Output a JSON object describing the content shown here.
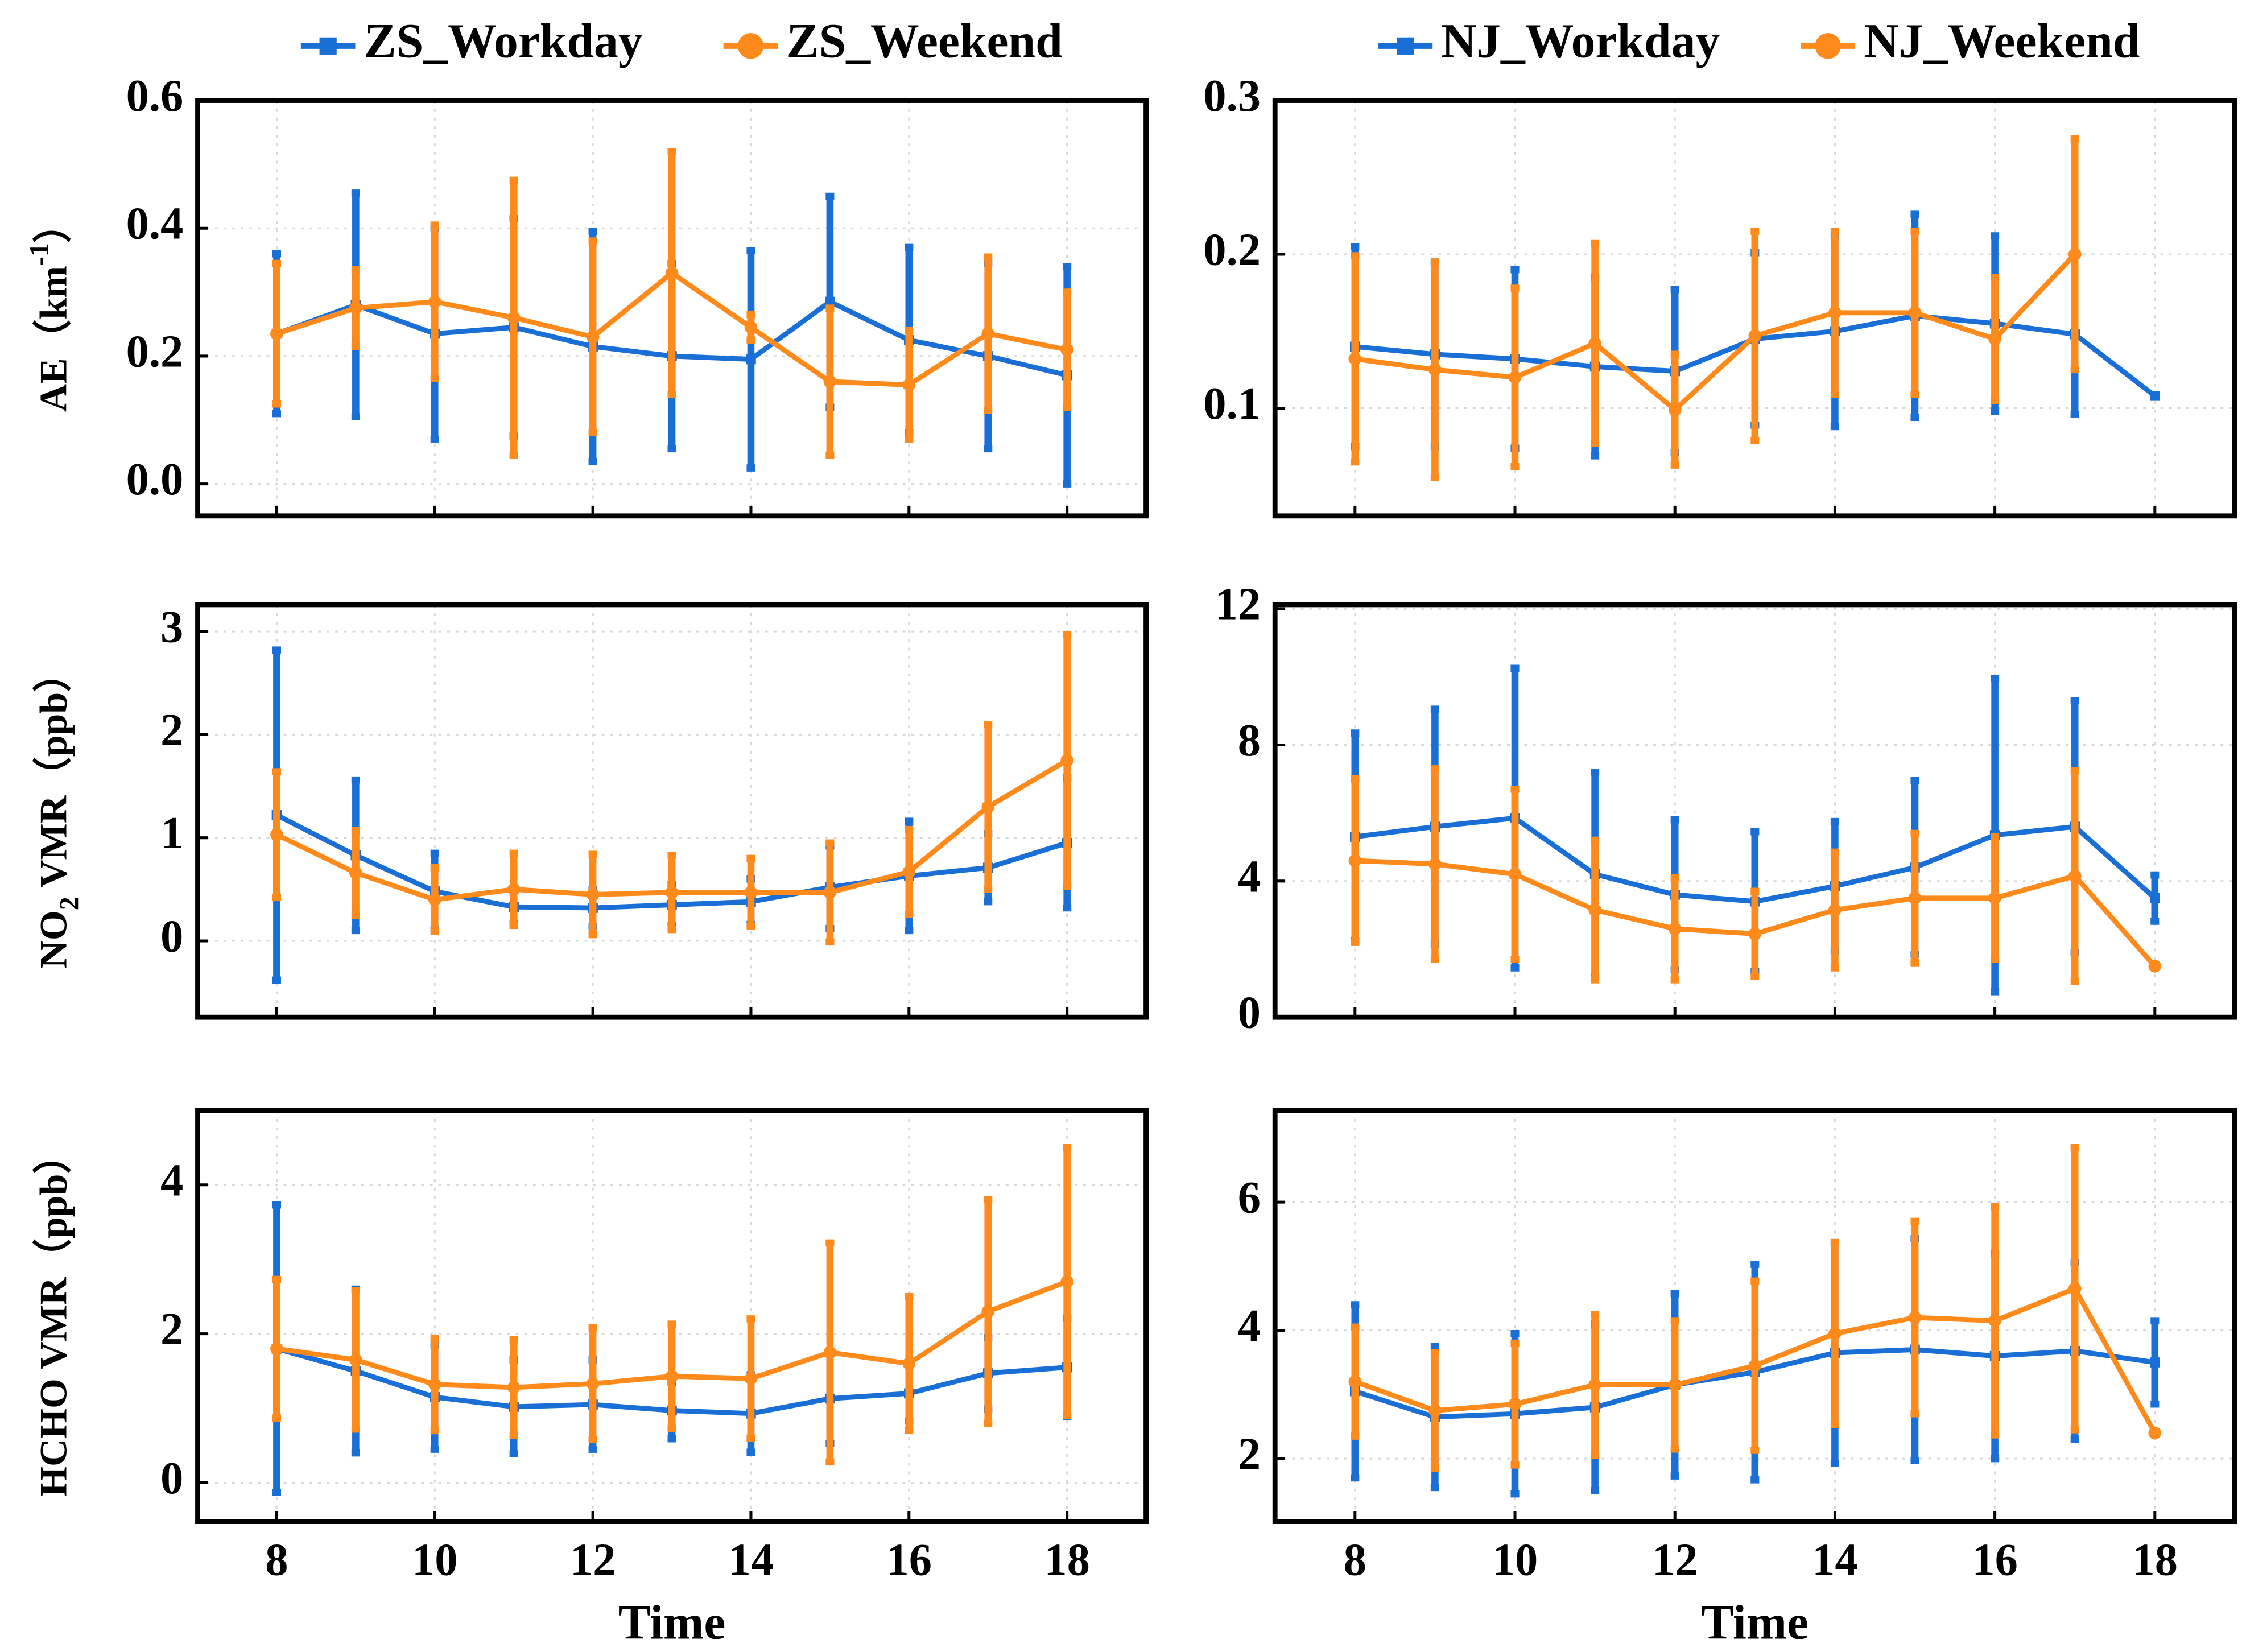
{
  "chart_data": [
    {
      "type": "line",
      "ylabel": [
        "AE（km",
        "-1",
        "）"
      ],
      "ylabel_script": "super",
      "legend": true,
      "show_xtick_labels": false,
      "x": [
        8,
        9,
        10,
        11,
        12,
        13,
        14,
        15,
        16,
        17,
        18
      ],
      "xlim": [
        7,
        19
      ],
      "xticks": [
        8,
        10,
        12,
        14,
        16,
        18
      ],
      "ylim": [
        -0.05,
        0.6
      ],
      "yticks": [
        {
          "value": 0,
          "label": "0.0"
        },
        0.2,
        0.4,
        0.6
      ],
      "grid": true,
      "series": [
        {
          "name": "ZS_Workday",
          "color": "#1a6fd6",
          "marker": "square",
          "values": [
            0.235,
            0.28,
            0.235,
            0.245,
            0.215,
            0.2,
            0.195,
            0.285,
            0.225,
            0.2,
            0.17
          ],
          "errors": [
            0.125,
            0.175,
            0.165,
            0.17,
            0.18,
            0.145,
            0.17,
            0.165,
            0.145,
            0.145,
            0.17
          ]
        },
        {
          "name": "ZS_Weekend",
          "color": "#ff8a1c",
          "marker": "circle",
          "values": [
            0.235,
            0.275,
            0.285,
            0.26,
            0.23,
            0.33,
            0.245,
            0.16,
            0.155,
            0.235,
            0.21
          ],
          "errors": [
            0.11,
            0.06,
            0.12,
            0.215,
            0.15,
            0.19,
            0.02,
            0.115,
            0.085,
            0.12,
            0.09
          ]
        }
      ]
    },
    {
      "type": "line",
      "legend": true,
      "show_xtick_labels": false,
      "x": [
        8,
        9,
        10,
        11,
        12,
        13,
        14,
        15,
        16,
        17,
        18
      ],
      "xlim": [
        7,
        19
      ],
      "xticks": [
        8,
        10,
        12,
        14,
        16,
        18
      ],
      "ylim": [
        0.03,
        0.3
      ],
      "yticks": [
        0.1,
        0.2,
        0.3
      ],
      "grid": true,
      "series": [
        {
          "name": "NJ_Workday",
          "color": "#1a6fd6",
          "marker": "square",
          "values": [
            0.14,
            0.135,
            0.132,
            0.127,
            0.124,
            0.145,
            0.15,
            0.16,
            0.155,
            0.148,
            0.108
          ],
          "errors": [
            0.065,
            0.06,
            0.058,
            0.058,
            0.053,
            0.056,
            0.062,
            0.066,
            0.057,
            0.052,
            null
          ]
        },
        {
          "name": "NJ_Weekend",
          "color": "#ff8a1c",
          "marker": "circle",
          "values": [
            0.132,
            0.125,
            0.12,
            0.142,
            0.099,
            0.147,
            0.162,
            0.162,
            0.145,
            0.2,
            null
          ],
          "errors": [
            0.067,
            0.07,
            0.058,
            0.065,
            0.036,
            0.068,
            0.053,
            0.053,
            0.04,
            0.075,
            null
          ]
        }
      ]
    },
    {
      "type": "line",
      "ylabel": [
        "NO",
        "2",
        " VMR（ppb）"
      ],
      "ylabel_script": "sub",
      "legend": false,
      "show_xtick_labels": false,
      "x": [
        8,
        9,
        10,
        11,
        12,
        13,
        14,
        15,
        16,
        17,
        18
      ],
      "xlim": [
        7,
        19
      ],
      "xticks": [
        8,
        10,
        12,
        14,
        16,
        18
      ],
      "ylim": [
        -0.74,
        3.26
      ],
      "yticks": [
        0,
        1,
        2,
        3
      ],
      "grid": true,
      "series": [
        {
          "color": "#1a6fd6",
          "marker": "square",
          "values": [
            1.22,
            0.83,
            0.48,
            0.33,
            0.32,
            0.35,
            0.38,
            0.52,
            0.63,
            0.71,
            0.95
          ],
          "errors": [
            1.6,
            0.73,
            0.37,
            0.16,
            0.18,
            0.2,
            0.22,
            0.4,
            0.53,
            0.33,
            0.63
          ]
        },
        {
          "color": "#ff8a1c",
          "marker": "circle",
          "values": [
            1.03,
            0.66,
            0.4,
            0.5,
            0.45,
            0.47,
            0.47,
            0.47,
            0.67,
            1.3,
            1.75
          ],
          "errors": [
            0.61,
            0.41,
            0.31,
            0.35,
            0.39,
            0.36,
            0.33,
            0.48,
            0.41,
            0.8,
            1.22
          ]
        }
      ]
    },
    {
      "type": "line",
      "legend": false,
      "show_xtick_labels": false,
      "x": [
        8,
        9,
        10,
        11,
        12,
        13,
        14,
        15,
        16,
        17,
        18
      ],
      "xlim": [
        7,
        19
      ],
      "xticks": [
        8,
        10,
        12,
        14,
        16,
        18
      ],
      "ylim": [
        0,
        12.12
      ],
      "yticks": [
        0,
        4,
        8,
        12
      ],
      "grid": true,
      "series": [
        {
          "color": "#1a6fd6",
          "marker": "square",
          "values": [
            5.3,
            5.6,
            5.85,
            4.2,
            3.6,
            3.4,
            3.85,
            4.4,
            5.35,
            5.6,
            3.5
          ],
          "errors": [
            3.05,
            3.45,
            4.4,
            3.0,
            2.2,
            2.05,
            1.9,
            2.55,
            4.6,
            3.7,
            0.68
          ]
        },
        {
          "color": "#ff8a1c",
          "marker": "circle",
          "values": [
            4.6,
            4.5,
            4.2,
            3.15,
            2.6,
            2.45,
            3.15,
            3.5,
            3.5,
            4.15,
            1.5
          ],
          "errors": [
            2.4,
            2.8,
            2.5,
            2.05,
            1.5,
            1.25,
            1.7,
            1.9,
            1.8,
            3.1,
            null
          ]
        }
      ]
    },
    {
      "type": "line",
      "ylabel": [
        "HCHO VMR（ppb）"
      ],
      "legend": false,
      "show_xtick_labels": true,
      "xlabel": "Time",
      "x": [
        8,
        9,
        10,
        11,
        12,
        13,
        14,
        15,
        16,
        17,
        18
      ],
      "xlim": [
        7,
        19
      ],
      "xticks": [
        8,
        10,
        12,
        14,
        16,
        18
      ],
      "ylim": [
        -0.52,
        5.0
      ],
      "yticks": [
        0,
        2,
        4
      ],
      "grid": true,
      "series": [
        {
          "color": "#1a6fd6",
          "marker": "square",
          "values": [
            1.8,
            1.5,
            1.15,
            1.02,
            1.05,
            0.97,
            0.93,
            1.13,
            1.2,
            1.47,
            1.55
          ],
          "errors": [
            1.93,
            1.1,
            0.7,
            0.63,
            0.6,
            0.38,
            0.52,
            0.6,
            0.37,
            0.48,
            0.66
          ]
        },
        {
          "color": "#ff8a1c",
          "marker": "circle",
          "values": [
            1.8,
            1.65,
            1.32,
            1.28,
            1.33,
            1.43,
            1.4,
            1.75,
            1.6,
            2.3,
            2.7
          ],
          "errors": [
            0.93,
            0.93,
            0.62,
            0.64,
            0.75,
            0.7,
            0.8,
            1.47,
            0.9,
            1.5,
            1.8
          ]
        }
      ]
    },
    {
      "type": "line",
      "legend": false,
      "show_xtick_labels": true,
      "xlabel": "Time",
      "x": [
        8,
        9,
        10,
        11,
        12,
        13,
        14,
        15,
        16,
        17,
        18
      ],
      "xlim": [
        7,
        19
      ],
      "xticks": [
        8,
        10,
        12,
        14,
        16,
        18
      ],
      "ylim": [
        1.02,
        7.43
      ],
      "yticks": [
        2,
        4,
        6
      ],
      "grid": true,
      "series": [
        {
          "color": "#1a6fd6",
          "marker": "square",
          "values": [
            3.05,
            2.65,
            2.7,
            2.8,
            3.15,
            3.35,
            3.65,
            3.7,
            3.6,
            3.68,
            3.5
          ],
          "errors": [
            1.35,
            1.1,
            1.25,
            1.3,
            1.42,
            1.68,
            1.72,
            1.73,
            1.6,
            1.38,
            0.65
          ]
        },
        {
          "color": "#ff8a1c",
          "marker": "circle",
          "values": [
            3.2,
            2.75,
            2.85,
            3.15,
            3.15,
            3.45,
            3.95,
            4.2,
            4.15,
            4.65,
            2.4
          ],
          "errors": [
            0.85,
            0.9,
            0.95,
            1.1,
            1.0,
            1.32,
            1.42,
            1.5,
            1.78,
            2.2,
            null
          ]
        }
      ]
    }
  ]
}
